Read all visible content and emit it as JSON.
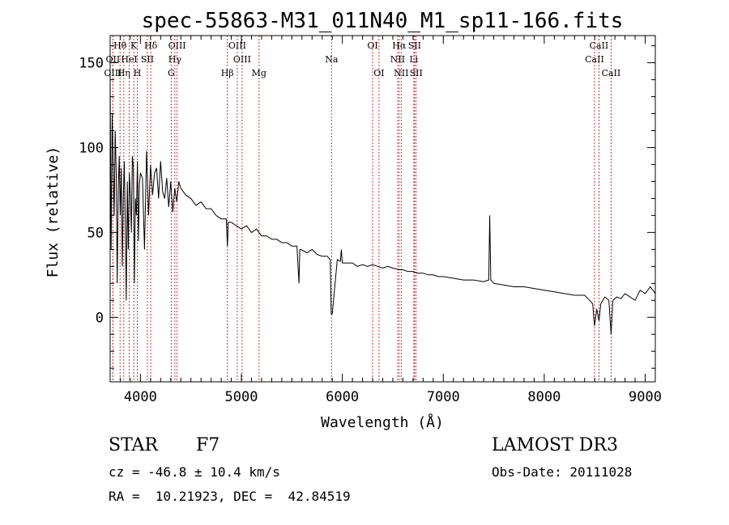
{
  "chart_data": {
    "type": "line",
    "title": "spec-55863-M31_011N40_M1_sp11-166.fits",
    "xlabel": "Wavelength (Å)",
    "ylabel": "Flux (relative)",
    "xlim": [
      3700,
      9100
    ],
    "ylim": [
      -38,
      166
    ],
    "xticks": [
      4000,
      5000,
      6000,
      7000,
      8000,
      9000
    ],
    "xtick_labels": [
      "4000",
      "5000",
      "6000",
      "7000",
      "8000",
      "9000"
    ],
    "yticks": [
      0,
      50,
      100,
      150
    ],
    "ytick_labels": [
      "0",
      "50",
      "100",
      "150"
    ],
    "series": [
      {
        "name": "spectrum",
        "x": [
          3700,
          3710,
          3720,
          3730,
          3740,
          3750,
          3760,
          3770,
          3780,
          3790,
          3800,
          3810,
          3820,
          3830,
          3840,
          3850,
          3860,
          3870,
          3880,
          3890,
          3900,
          3910,
          3920,
          3930,
          3940,
          3950,
          3960,
          3970,
          3980,
          3990,
          4000,
          4020,
          4040,
          4060,
          4080,
          4100,
          4120,
          4140,
          4160,
          4180,
          4200,
          4220,
          4240,
          4260,
          4280,
          4300,
          4320,
          4340,
          4360,
          4380,
          4400,
          4450,
          4500,
          4550,
          4600,
          4650,
          4700,
          4750,
          4800,
          4850,
          4862,
          4870,
          4900,
          4950,
          5000,
          5050,
          5100,
          5150,
          5200,
          5250,
          5300,
          5350,
          5400,
          5450,
          5500,
          5550,
          5570,
          5578,
          5590,
          5650,
          5700,
          5750,
          5800,
          5850,
          5880,
          5890,
          5900,
          5950,
          5980,
          5990,
          6000,
          6050,
          6100,
          6150,
          6200,
          6250,
          6300,
          6350,
          6400,
          6450,
          6500,
          6563,
          6600,
          6650,
          6700,
          6750,
          6800,
          6850,
          6900,
          6950,
          7000,
          7100,
          7200,
          7300,
          7400,
          7450,
          7460,
          7470,
          7500,
          7600,
          7700,
          7800,
          7900,
          8000,
          8100,
          8200,
          8300,
          8400,
          8450,
          8480,
          8498,
          8520,
          8542,
          8560,
          8600,
          8640,
          8662,
          8680,
          8720,
          8760,
          8800,
          8850,
          8900,
          8950,
          9000,
          9050,
          9100
        ],
        "values": [
          140,
          40,
          120,
          90,
          60,
          110,
          85,
          20,
          75,
          95,
          60,
          88,
          30,
          70,
          92,
          55,
          10,
          80,
          40,
          85,
          72,
          50,
          95,
          88,
          20,
          70,
          60,
          92,
          45,
          78,
          85,
          82,
          40,
          98,
          60,
          90,
          72,
          85,
          88,
          70,
          92,
          74,
          70,
          82,
          65,
          80,
          62,
          76,
          68,
          80,
          76,
          72,
          70,
          66,
          68,
          64,
          64,
          60,
          58,
          58,
          42,
          56,
          56,
          54,
          52,
          54,
          50,
          52,
          48,
          48,
          46,
          46,
          44,
          44,
          42,
          42,
          20,
          40,
          40,
          38,
          40,
          37,
          36,
          36,
          34,
          2,
          2,
          34,
          33,
          40,
          32,
          32,
          32,
          30,
          31,
          30,
          31,
          30,
          29,
          30,
          29,
          28,
          28,
          27,
          27,
          26,
          26,
          25,
          25,
          24,
          24,
          23,
          22,
          22,
          21,
          22,
          60,
          22,
          20,
          19,
          18,
          18,
          17,
          16,
          15,
          14,
          13,
          13,
          10,
          8,
          -5,
          5,
          -2,
          8,
          12,
          10,
          -10,
          10,
          12,
          11,
          14,
          12,
          10,
          16,
          14,
          18,
          14
        ]
      }
    ],
    "lines": [
      {
        "label": "Hθ",
        "wave": 3798,
        "row": 0
      },
      {
        "label": "OII",
        "wave": 3727,
        "row": 1
      },
      {
        "label": "OIII",
        "wave": 3727,
        "row": 2
      },
      {
        "label": "K",
        "wave": 3934,
        "row": 0
      },
      {
        "label": "HeI",
        "wave": 3889,
        "row": 1
      },
      {
        "label": "Hη",
        "wave": 3835,
        "row": 2
      },
      {
        "label": "Hδ",
        "wave": 4102,
        "row": 0
      },
      {
        "label": "SII",
        "wave": 4069,
        "row": 1
      },
      {
        "label": "H",
        "wave": 3969,
        "row": 2
      },
      {
        "label": "OIII",
        "wave": 4363,
        "row": 0
      },
      {
        "label": "Hγ",
        "wave": 4341,
        "row": 1
      },
      {
        "label": "G",
        "wave": 4305,
        "row": 2
      },
      {
        "label": "OIII",
        "wave": 4959,
        "row": 0
      },
      {
        "label": "OIII",
        "wave": 5007,
        "row": 1
      },
      {
        "label": "Hβ",
        "wave": 4861,
        "row": 2
      },
      {
        "label": "Mg",
        "wave": 5175,
        "row": 2
      },
      {
        "label": "Na",
        "wave": 5893,
        "row": 1
      },
      {
        "label": "OI",
        "wave": 6300,
        "row": 0
      },
      {
        "label": "OI",
        "wave": 6363,
        "row": 2
      },
      {
        "label": "Hα",
        "wave": 6563,
        "row": 0
      },
      {
        "label": "NII",
        "wave": 6548,
        "row": 1
      },
      {
        "label": "NII",
        "wave": 6583,
        "row": 2
      },
      {
        "label": "SII",
        "wave": 6716,
        "row": 0
      },
      {
        "label": "Li",
        "wave": 6708,
        "row": 1
      },
      {
        "label": "SII",
        "wave": 6731,
        "row": 2
      },
      {
        "label": "CaII",
        "wave": 8542,
        "row": 0
      },
      {
        "label": "CaII",
        "wave": 8498,
        "row": 1
      },
      {
        "label": "CaII",
        "wave": 8662,
        "row": 2
      }
    ]
  },
  "info": {
    "object_class": "STAR",
    "subclass": "F7",
    "survey": "LAMOST DR3",
    "cz": "cz = -46.8 ± 10.4 km/s",
    "obs_date": "Obs-Date: 20111028",
    "coords": "RA =  10.21923, DEC =  42.84519"
  },
  "colors": {
    "line_marker": "#cc2222",
    "spectrum": "#000000",
    "axes": "#000000"
  }
}
